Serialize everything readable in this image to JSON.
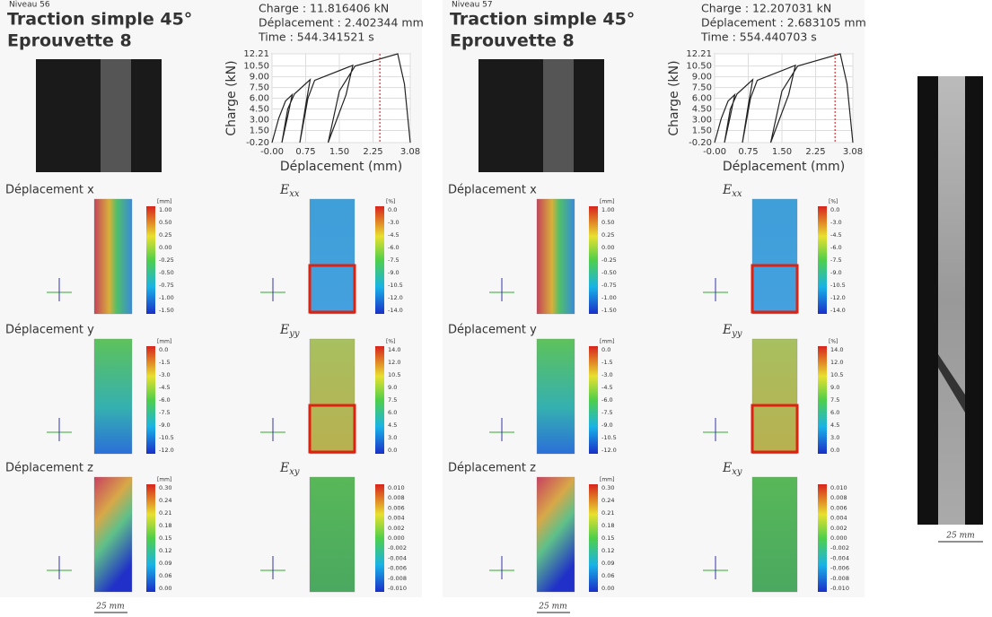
{
  "panels": [
    {
      "niveau": "Niveau 56",
      "title": [
        "Traction simple 45°",
        "Eprouvette 8"
      ],
      "readout": [
        "Charge : 11.816406 kN",
        "Déplacement : 2.402344 mm",
        "Time : 544.341521 s"
      ],
      "chart": {
        "xlabel": "Déplacement (mm)",
        "ylabel": "Charge (kN)",
        "xlim": [
          0,
          3.08
        ],
        "ylim": [
          -0.2,
          12.21
        ],
        "xticks": [
          {
            "value": 0,
            "label": "-0.00"
          },
          0.75,
          {
            "value": 1.5,
            "label": "1.50"
          },
          2.25,
          3.08
        ],
        "yticks": [
          {
            "value": -0.2,
            "label": "-0.20"
          },
          {
            "value": 1.5,
            "label": "1.50"
          },
          {
            "value": 3,
            "label": "3.00"
          },
          {
            "value": 4.5,
            "label": "4.50"
          },
          {
            "value": 6,
            "label": "6.00"
          },
          {
            "value": 7.5,
            "label": "7.50"
          },
          {
            "value": 9,
            "label": "9.00"
          },
          {
            "value": 10.5,
            "label": "10.50"
          },
          12.21
        ],
        "curve": {
          "x": [
            0,
            0.15,
            0.3,
            0.45,
            0.35,
            0.22,
            0.35,
            0.5,
            0.85,
            0.75,
            0.62,
            0.8,
            0.95,
            1.8,
            1.65,
            1.25,
            1.5,
            1.85,
            2.8,
            2.95,
            3.08
          ],
          "y": [
            -0.2,
            3.2,
            5.6,
            6.5,
            3.5,
            -0.2,
            4.5,
            6.6,
            8.6,
            5.0,
            -0.2,
            6.0,
            8.5,
            10.6,
            6.5,
            -0.2,
            7.0,
            10.5,
            12.21,
            8.0,
            -0.2
          ]
        },
        "cursor": 2.402344
      },
      "rows": [
        {
          "label": "Déplacement x",
          "strain": "E",
          "sub": "xx",
          "maps": [
            {
              "unit": "[mm]",
              "ticks": [
                "1.00",
                "0.50",
                "0.25",
                "0.00",
                "-0.25",
                "-0.50",
                "-0.75",
                "-1.00",
                "-1.50"
              ]
            },
            {
              "unit": "[%]",
              "ticks": [
                "0.0",
                "-3.0",
                "-4.5",
                "-6.0",
                "-7.5",
                "-9.0",
                "-10.5",
                "-12.0",
                "-14.0"
              ]
            }
          ]
        },
        {
          "label": "Déplacement y",
          "strain": "E",
          "sub": "yy",
          "maps": [
            {
              "unit": "[mm]",
              "ticks": [
                "0.0",
                "-1.5",
                "-3.0",
                "-4.5",
                "-6.0",
                "-7.5",
                "-9.0",
                "-10.5",
                "-12.0"
              ]
            },
            {
              "unit": "[%]",
              "ticks": [
                "14.0",
                "12.0",
                "10.5",
                "9.0",
                "7.5",
                "6.0",
                "4.5",
                "3.0",
                "0.0"
              ]
            }
          ]
        },
        {
          "label": "Déplacement z",
          "strain": "E",
          "sub": "xy",
          "maps": [
            {
              "unit": "[mm]",
              "ticks": [
                "0.30",
                "0.24",
                "0.21",
                "0.18",
                "0.15",
                "0.12",
                "0.09",
                "0.06",
                "0.00"
              ]
            },
            {
              "ticks": [
                "0.010",
                "0.008",
                "0.006",
                "0.004",
                "0.002",
                "0.000",
                "-0.002",
                "-0.004",
                "-0.006",
                "-0.008",
                "-0.010"
              ]
            }
          ]
        }
      ],
      "scale": "25 mm"
    },
    {
      "niveau": "Niveau 57",
      "title": [
        "Traction simple 45°",
        "Eprouvette 8"
      ],
      "readout": [
        "Charge : 12.207031 kN",
        "Déplacement : 2.683105 mm",
        "Time : 554.440703 s"
      ],
      "chart": {
        "xlabel": "Déplacement (mm)",
        "ylabel": "Charge (kN)",
        "xlim": [
          0,
          3.08
        ],
        "ylim": [
          -0.2,
          12.21
        ],
        "xticks": [
          {
            "value": 0,
            "label": "-0.00"
          },
          0.75,
          {
            "value": 1.5,
            "label": "1.50"
          },
          2.25,
          3.08
        ],
        "yticks": [
          {
            "value": -0.2,
            "label": "-0.20"
          },
          {
            "value": 1.5,
            "label": "1.50"
          },
          {
            "value": 3,
            "label": "3.00"
          },
          {
            "value": 4.5,
            "label": "4.50"
          },
          {
            "value": 6,
            "label": "6.00"
          },
          {
            "value": 7.5,
            "label": "7.50"
          },
          {
            "value": 9,
            "label": "9.00"
          },
          {
            "value": 10.5,
            "label": "10.50"
          },
          12.21
        ],
        "curve": {
          "x": [
            0,
            0.15,
            0.3,
            0.45,
            0.35,
            0.22,
            0.35,
            0.5,
            0.85,
            0.75,
            0.62,
            0.8,
            0.95,
            1.8,
            1.65,
            1.25,
            1.5,
            1.85,
            2.8,
            2.95,
            3.08
          ],
          "y": [
            -0.2,
            3.2,
            5.6,
            6.5,
            3.5,
            -0.2,
            4.5,
            6.6,
            8.6,
            5.0,
            -0.2,
            6.0,
            8.5,
            10.6,
            6.5,
            -0.2,
            7.0,
            10.5,
            12.21,
            8.0,
            -0.2
          ]
        },
        "cursor": 2.683105
      },
      "rows": [
        {
          "label": "Déplacement x",
          "strain": "E",
          "sub": "xx",
          "maps": [
            {
              "unit": "[mm]",
              "ticks": [
                "1.00",
                "0.50",
                "0.25",
                "0.00",
                "-0.25",
                "-0.50",
                "-0.75",
                "-1.00",
                "-1.50"
              ]
            },
            {
              "unit": "[%]",
              "ticks": [
                "0.0",
                "-3.0",
                "-4.5",
                "-6.0",
                "-7.5",
                "-9.0",
                "-10.5",
                "-12.0",
                "-14.0"
              ]
            }
          ]
        },
        {
          "label": "Déplacement y",
          "strain": "E",
          "sub": "yy",
          "maps": [
            {
              "unit": "[mm]",
              "ticks": [
                "0.0",
                "-1.5",
                "-3.0",
                "-4.5",
                "-6.0",
                "-7.5",
                "-9.0",
                "-10.5",
                "-12.0"
              ]
            },
            {
              "unit": "[%]",
              "ticks": [
                "14.0",
                "12.0",
                "10.5",
                "9.0",
                "7.5",
                "6.0",
                "4.5",
                "3.0",
                "0.0"
              ]
            }
          ]
        },
        {
          "label": "Déplacement z",
          "strain": "E",
          "sub": "xy",
          "maps": [
            {
              "unit": "[mm]",
              "ticks": [
                "0.30",
                "0.24",
                "0.21",
                "0.18",
                "0.15",
                "0.12",
                "0.09",
                "0.06",
                "0.00"
              ]
            },
            {
              "ticks": [
                "0.010",
                "0.008",
                "0.006",
                "0.004",
                "0.002",
                "0.000",
                "-0.002",
                "-0.004",
                "-0.006",
                "-0.008",
                "-0.010"
              ]
            }
          ]
        }
      ],
      "scale": "25 mm"
    }
  ],
  "specimen": {
    "scale": "25 mm"
  }
}
